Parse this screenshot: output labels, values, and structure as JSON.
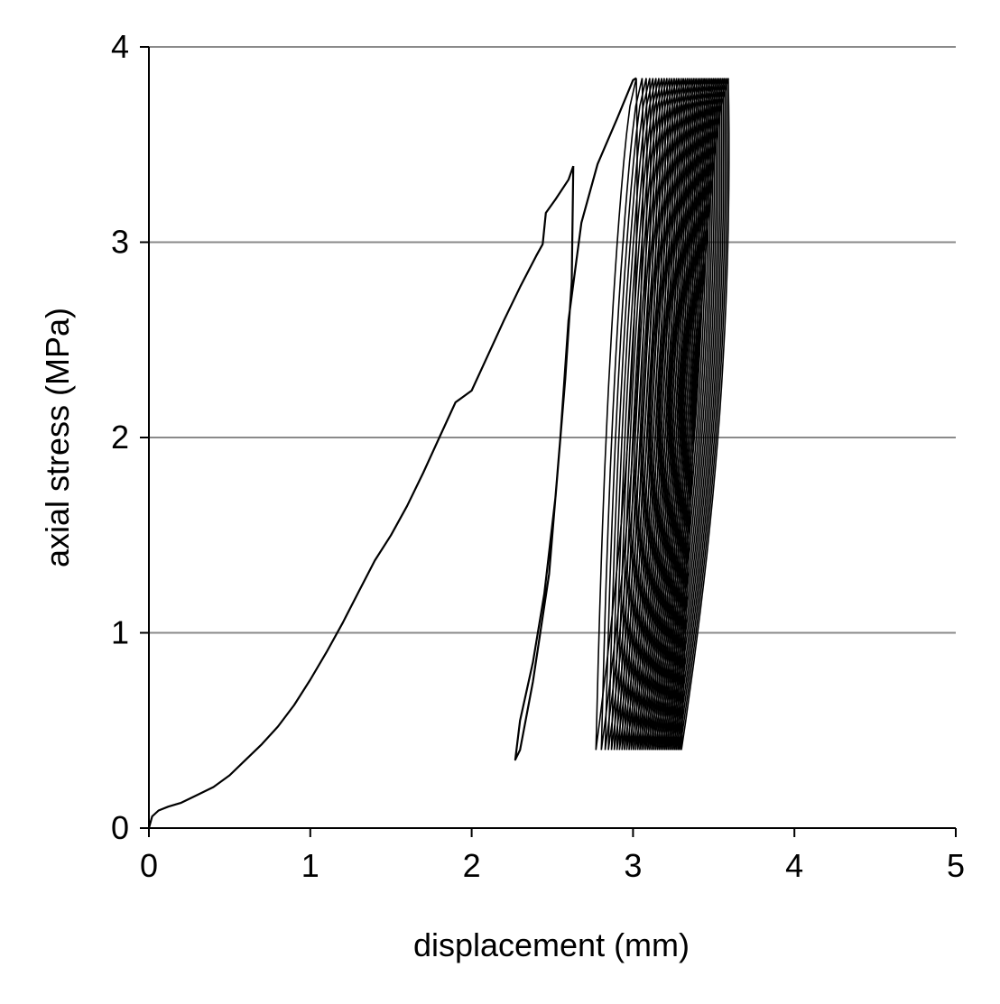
{
  "chart_data": {
    "type": "line",
    "title": "",
    "xlabel": "displacement (mm)",
    "ylabel": "axial stress (MPa)",
    "xlim": [
      0,
      5
    ],
    "ylim": [
      0,
      4
    ],
    "xticks": [
      0,
      1,
      2,
      3,
      4,
      5
    ],
    "yticks": [
      0,
      1,
      2,
      3,
      4
    ],
    "grid": "horizontal",
    "legend": "none",
    "series": [
      {
        "line_color": "#000000",
        "loading_path": [
          [
            0.0,
            0.0
          ],
          [
            0.02,
            0.06
          ],
          [
            0.06,
            0.09
          ],
          [
            0.12,
            0.11
          ],
          [
            0.2,
            0.13
          ],
          [
            0.3,
            0.17
          ],
          [
            0.4,
            0.21
          ],
          [
            0.5,
            0.27
          ],
          [
            0.6,
            0.35
          ],
          [
            0.7,
            0.43
          ],
          [
            0.8,
            0.52
          ],
          [
            0.9,
            0.63
          ],
          [
            1.0,
            0.76
          ],
          [
            1.1,
            0.9
          ],
          [
            1.2,
            1.05
          ],
          [
            1.3,
            1.21
          ],
          [
            1.4,
            1.37
          ],
          [
            1.5,
            1.5
          ],
          [
            1.6,
            1.65
          ],
          [
            1.7,
            1.82
          ],
          [
            1.8,
            2.0
          ],
          [
            1.9,
            2.18
          ],
          [
            2.0,
            2.24
          ],
          [
            2.1,
            2.42
          ],
          [
            2.2,
            2.6
          ],
          [
            2.3,
            2.77
          ],
          [
            2.4,
            2.93
          ],
          [
            2.44,
            2.99
          ],
          [
            2.46,
            3.15
          ],
          [
            2.52,
            3.22
          ],
          [
            2.6,
            3.32
          ],
          [
            2.63,
            3.39
          ]
        ],
        "first_unload_reload": [
          [
            2.63,
            3.39
          ],
          [
            2.62,
            2.8
          ],
          [
            2.58,
            2.3
          ],
          [
            2.52,
            1.7
          ],
          [
            2.45,
            1.2
          ],
          [
            2.38,
            0.85
          ],
          [
            2.3,
            0.55
          ],
          [
            2.27,
            0.35
          ],
          [
            2.3,
            0.4
          ],
          [
            2.38,
            0.75
          ],
          [
            2.48,
            1.3
          ],
          [
            2.55,
            2.0
          ],
          [
            2.6,
            2.6
          ],
          [
            2.68,
            3.1
          ],
          [
            2.78,
            3.4
          ],
          [
            2.9,
            3.63
          ],
          [
            3.0,
            3.83
          ],
          [
            3.02,
            3.84
          ]
        ],
        "cyclic_loading": {
          "cycles_count": 40,
          "min_stress": 0.4,
          "max_stress": 3.84,
          "displacement_at_min_stress": [
            2.77,
            3.3
          ],
          "displacement_at_max_stress": [
            3.02,
            3.59
          ]
        }
      }
    ]
  }
}
